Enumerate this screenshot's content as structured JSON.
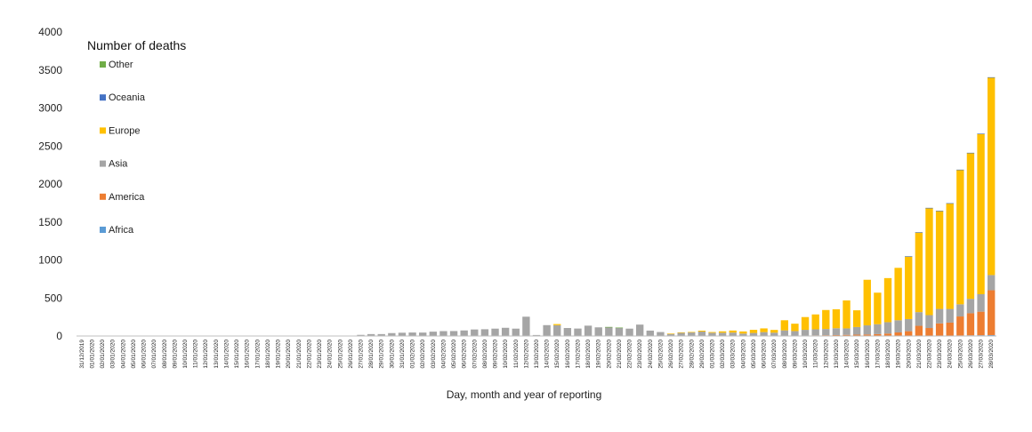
{
  "chart_data": {
    "type": "bar",
    "stacked": true,
    "title": "",
    "xlabel": "Day, month and year of reporting",
    "ylabel": "",
    "ylim": [
      0,
      4000
    ],
    "yticks": [
      0,
      500,
      1000,
      1500,
      2000,
      2500,
      3000,
      3500,
      4000
    ],
    "legend": {
      "title": "Number of deaths",
      "position": "top-left",
      "entries": [
        "Other",
        "Oceania",
        "Europe",
        "Asia",
        "America",
        "Africa"
      ]
    },
    "categories": [
      "31/12/2019",
      "01/01/2020",
      "02/01/2020",
      "03/01/2020",
      "04/01/2020",
      "05/01/2020",
      "06/01/2020",
      "07/01/2020",
      "08/01/2020",
      "09/01/2020",
      "10/01/2020",
      "11/01/2020",
      "12/01/2020",
      "13/01/2020",
      "14/01/2020",
      "15/01/2020",
      "16/01/2020",
      "17/01/2020",
      "18/01/2020",
      "19/01/2020",
      "20/01/2020",
      "21/01/2020",
      "22/01/2020",
      "23/01/2020",
      "24/01/2020",
      "25/01/2020",
      "26/01/2020",
      "27/01/2020",
      "28/01/2020",
      "29/01/2020",
      "30/01/2020",
      "31/01/2020",
      "01/02/2020",
      "02/02/2020",
      "03/02/2020",
      "04/02/2020",
      "05/02/2020",
      "06/02/2020",
      "07/02/2020",
      "08/02/2020",
      "09/02/2020",
      "10/02/2020",
      "11/02/2020",
      "12/02/2020",
      "13/02/2020",
      "14/02/2020",
      "15/02/2020",
      "16/02/2020",
      "17/02/2020",
      "18/02/2020",
      "19/02/2020",
      "20/02/2020",
      "21/02/2020",
      "22/02/2020",
      "23/02/2020",
      "24/02/2020",
      "25/02/2020",
      "26/02/2020",
      "27/02/2020",
      "28/02/2020",
      "29/02/2020",
      "01/03/2020",
      "02/03/2020",
      "03/03/2020",
      "04/03/2020",
      "05/03/2020",
      "06/03/2020",
      "07/03/2020",
      "08/03/2020",
      "09/03/2020",
      "10/03/2020",
      "11/03/2020",
      "12/03/2020",
      "13/03/2020",
      "14/03/2020",
      "15/03/2020",
      "16/03/2020",
      "17/03/2020",
      "18/03/2020",
      "19/03/2020",
      "20/03/2020",
      "21/03/2020",
      "22/03/2020",
      "23/03/2020",
      "24/03/2020",
      "25/03/2020",
      "26/03/2020",
      "27/03/2020",
      "28/03/2020"
    ],
    "series": [
      {
        "name": "Africa",
        "color": "#5B9BD5",
        "values": [
          0,
          0,
          0,
          0,
          0,
          0,
          0,
          0,
          0,
          0,
          0,
          0,
          0,
          0,
          0,
          0,
          0,
          0,
          0,
          0,
          0,
          0,
          0,
          0,
          0,
          0,
          0,
          0,
          0,
          0,
          0,
          0,
          0,
          0,
          0,
          0,
          0,
          0,
          0,
          0,
          0,
          0,
          0,
          0,
          0,
          0,
          0,
          0,
          0,
          0,
          0,
          0,
          0,
          0,
          0,
          0,
          0,
          0,
          0,
          0,
          0,
          0,
          0,
          0,
          0,
          0,
          0,
          0,
          0,
          0,
          0,
          0,
          0,
          0,
          0,
          0,
          0,
          0,
          2,
          2,
          3,
          4,
          5,
          6,
          6,
          7,
          9,
          10,
          12
        ]
      },
      {
        "name": "America",
        "color": "#ED7D31",
        "values": [
          0,
          0,
          0,
          0,
          0,
          0,
          0,
          0,
          0,
          0,
          0,
          0,
          0,
          0,
          0,
          0,
          0,
          0,
          0,
          0,
          0,
          0,
          0,
          0,
          0,
          0,
          0,
          0,
          0,
          0,
          0,
          0,
          0,
          0,
          0,
          0,
          0,
          0,
          0,
          0,
          0,
          0,
          0,
          0,
          0,
          0,
          0,
          0,
          0,
          0,
          0,
          0,
          0,
          0,
          0,
          0,
          0,
          0,
          0,
          0,
          0,
          0,
          1,
          1,
          2,
          2,
          3,
          4,
          4,
          5,
          6,
          8,
          10,
          12,
          15,
          18,
          20,
          25,
          30,
          45,
          60,
          130,
          100,
          160,
          170,
          250,
          290,
          310,
          590
        ]
      },
      {
        "name": "Asia",
        "color": "#A5A5A5",
        "values": [
          0,
          0,
          0,
          0,
          0,
          0,
          0,
          0,
          0,
          0,
          0,
          0,
          0,
          0,
          0,
          0,
          0,
          0,
          0,
          0,
          0,
          0,
          0,
          0,
          0,
          0,
          0,
          15,
          25,
          25,
          38,
          43,
          46,
          45,
          57,
          64,
          65,
          73,
          86,
          89,
          97,
          108,
          97,
          254,
          13,
          143,
          142,
          105,
          98,
          136,
          114,
          118,
          109,
          97,
          150,
          71,
          52,
          29,
          44,
          47,
          58,
          42,
          42,
          44,
          30,
          38,
          48,
          40,
          70,
          60,
          75,
          80,
          82,
          90,
          85,
          100,
          120,
          130,
          150,
          160,
          160,
          180,
          170,
          190,
          180,
          160,
          190,
          230,
          200
        ]
      },
      {
        "name": "Europe",
        "color": "#FFC000",
        "values": [
          0,
          0,
          0,
          0,
          0,
          0,
          0,
          0,
          0,
          0,
          0,
          0,
          0,
          0,
          0,
          0,
          0,
          0,
          0,
          0,
          0,
          0,
          0,
          0,
          0,
          0,
          0,
          0,
          0,
          0,
          0,
          0,
          0,
          0,
          0,
          0,
          0,
          0,
          0,
          0,
          0,
          0,
          0,
          0,
          0,
          0,
          15,
          0,
          0,
          0,
          0,
          0,
          0,
          0,
          0,
          0,
          0,
          3,
          4,
          6,
          12,
          10,
          18,
          27,
          28,
          41,
          49,
          36,
          133,
          97,
          168,
          196,
          250,
          250,
          368,
          220,
          600,
          415,
          580,
          690,
          825,
          1050,
          1410,
          1290,
          1390,
          1770,
          1920,
          2110,
          2600
        ]
      },
      {
        "name": "Oceania",
        "color": "#4472C4",
        "values": [
          0,
          0,
          0,
          0,
          0,
          0,
          0,
          0,
          0,
          0,
          0,
          0,
          0,
          0,
          0,
          0,
          0,
          0,
          0,
          0,
          0,
          0,
          0,
          0,
          0,
          0,
          0,
          0,
          0,
          0,
          0,
          0,
          0,
          0,
          0,
          0,
          0,
          0,
          0,
          0,
          0,
          0,
          0,
          0,
          0,
          0,
          0,
          0,
          0,
          0,
          0,
          0,
          0,
          0,
          0,
          0,
          0,
          0,
          0,
          0,
          0,
          0,
          0,
          0,
          0,
          0,
          0,
          0,
          0,
          0,
          0,
          0,
          0,
          0,
          0,
          0,
          0,
          0,
          0,
          0,
          1,
          1,
          1,
          2,
          2,
          2,
          2,
          3,
          3
        ]
      },
      {
        "name": "Other",
        "color": "#70AD47",
        "values": [
          0,
          0,
          0,
          0,
          0,
          0,
          0,
          0,
          0,
          0,
          0,
          0,
          0,
          0,
          0,
          0,
          0,
          0,
          0,
          0,
          0,
          0,
          0,
          0,
          0,
          0,
          0,
          0,
          0,
          0,
          0,
          0,
          0,
          0,
          0,
          0,
          0,
          0,
          0,
          0,
          0,
          0,
          0,
          0,
          0,
          0,
          0,
          0,
          0,
          0,
          0,
          1,
          2,
          0,
          0,
          0,
          0,
          0,
          0,
          0,
          0,
          0,
          0,
          0,
          0,
          0,
          0,
          0,
          0,
          0,
          0,
          0,
          0,
          0,
          0,
          0,
          0,
          0,
          0,
          0,
          0,
          0,
          0,
          0,
          0,
          0,
          0,
          0,
          0
        ]
      }
    ]
  }
}
